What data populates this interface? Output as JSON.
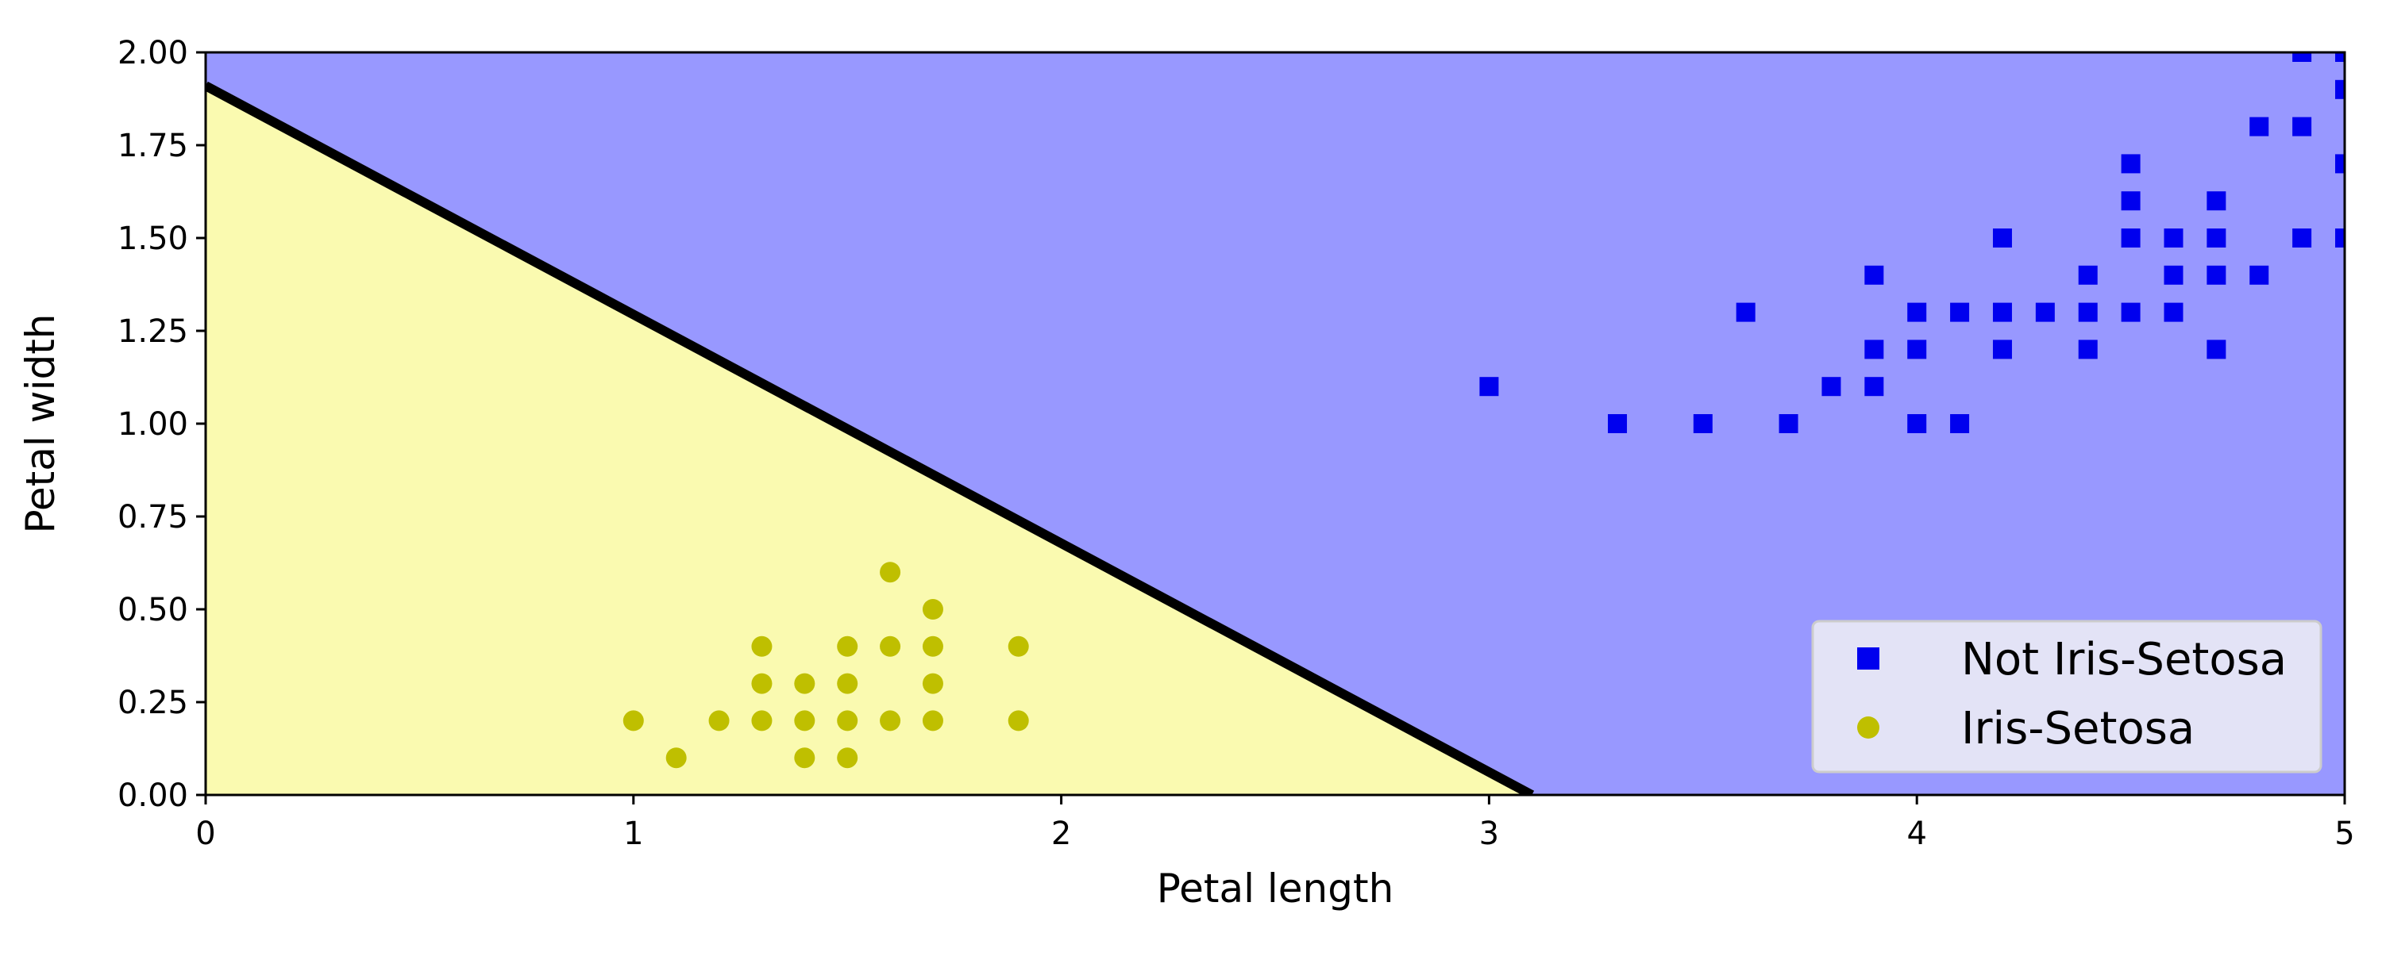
{
  "chart_data": {
    "type": "scatter",
    "title": "",
    "xlabel": "Petal length",
    "ylabel": "Petal width",
    "xlim": [
      0,
      5
    ],
    "ylim": [
      0,
      2
    ],
    "xticks": [
      0,
      1,
      2,
      3,
      4,
      5
    ],
    "xtick_labels": [
      "0",
      "1",
      "2",
      "3",
      "4",
      "5"
    ],
    "yticks": [
      0,
      0.25,
      0.5,
      0.75,
      1.0,
      1.25,
      1.5,
      1.75,
      2.0
    ],
    "ytick_labels": [
      "0.00",
      "0.25",
      "0.50",
      "0.75",
      "1.00",
      "1.25",
      "1.50",
      "1.75",
      "2.00"
    ],
    "grid": false,
    "legend_position": "bottom-right",
    "decision_boundary": {
      "x": [
        0,
        3.1
      ],
      "y": [
        1.91,
        0
      ],
      "color": "#000000"
    },
    "regions": [
      {
        "color": "#fafab0",
        "side": "below-boundary"
      },
      {
        "color": "#9898ff",
        "side": "above-boundary"
      }
    ],
    "series": [
      {
        "name": "Not Iris-Setosa",
        "marker": "square",
        "color": "#0000ee",
        "points": [
          [
            3.0,
            1.1
          ],
          [
            3.3,
            1.0
          ],
          [
            3.5,
            1.0
          ],
          [
            3.6,
            1.3
          ],
          [
            3.7,
            1.0
          ],
          [
            3.8,
            1.1
          ],
          [
            3.9,
            1.1
          ],
          [
            3.9,
            1.2
          ],
          [
            3.9,
            1.4
          ],
          [
            4.0,
            1.0
          ],
          [
            4.0,
            1.2
          ],
          [
            4.0,
            1.3
          ],
          [
            4.1,
            1.0
          ],
          [
            4.1,
            1.3
          ],
          [
            4.2,
            1.2
          ],
          [
            4.2,
            1.3
          ],
          [
            4.2,
            1.5
          ],
          [
            4.3,
            1.3
          ],
          [
            4.4,
            1.2
          ],
          [
            4.4,
            1.3
          ],
          [
            4.4,
            1.4
          ],
          [
            4.5,
            1.3
          ],
          [
            4.5,
            1.5
          ],
          [
            4.5,
            1.6
          ],
          [
            4.5,
            1.7
          ],
          [
            4.6,
            1.3
          ],
          [
            4.6,
            1.4
          ],
          [
            4.6,
            1.5
          ],
          [
            4.7,
            1.2
          ],
          [
            4.7,
            1.4
          ],
          [
            4.7,
            1.5
          ],
          [
            4.7,
            1.6
          ],
          [
            4.8,
            1.4
          ],
          [
            4.8,
            1.8
          ],
          [
            4.9,
            1.5
          ],
          [
            4.9,
            1.8
          ],
          [
            4.9,
            2.0
          ],
          [
            5.0,
            1.5
          ],
          [
            5.0,
            1.7
          ],
          [
            5.0,
            1.9
          ],
          [
            5.0,
            2.0
          ]
        ]
      },
      {
        "name": "Iris-Setosa",
        "marker": "circle",
        "color": "#bfbf00",
        "points": [
          [
            1.0,
            0.2
          ],
          [
            1.1,
            0.1
          ],
          [
            1.2,
            0.2
          ],
          [
            1.3,
            0.2
          ],
          [
            1.3,
            0.3
          ],
          [
            1.3,
            0.4
          ],
          [
            1.4,
            0.1
          ],
          [
            1.4,
            0.2
          ],
          [
            1.4,
            0.3
          ],
          [
            1.5,
            0.1
          ],
          [
            1.5,
            0.2
          ],
          [
            1.5,
            0.3
          ],
          [
            1.5,
            0.4
          ],
          [
            1.6,
            0.2
          ],
          [
            1.6,
            0.4
          ],
          [
            1.6,
            0.6
          ],
          [
            1.7,
            0.2
          ],
          [
            1.7,
            0.3
          ],
          [
            1.7,
            0.4
          ],
          [
            1.7,
            0.5
          ],
          [
            1.9,
            0.2
          ],
          [
            1.9,
            0.4
          ]
        ]
      }
    ]
  }
}
